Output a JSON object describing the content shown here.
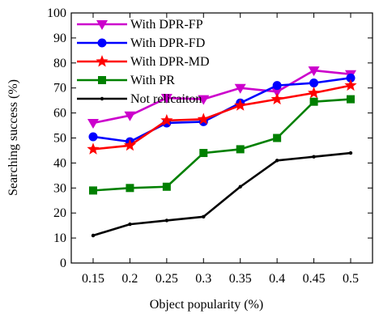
{
  "chart_data": {
    "type": "line",
    "xlabel": "Object popularity (%)",
    "ylabel": "Searching success (%)",
    "x": [
      0.15,
      0.2,
      0.25,
      0.3,
      0.35,
      0.4,
      0.45,
      0.5
    ],
    "x_tick_labels": [
      "0.15",
      "0.2",
      "0.25",
      "0.3",
      "0.35",
      "0.4",
      "0.45",
      "0.5"
    ],
    "y_ticks": [
      0,
      10,
      20,
      30,
      40,
      50,
      60,
      70,
      80,
      90,
      100
    ],
    "ylim": [
      0,
      100
    ],
    "grid": false,
    "legend_position": "top-left",
    "series": [
      {
        "name": "With DPR-FP",
        "color": "#cc00cc",
        "marker": "triangle-down",
        "values": [
          56,
          59,
          66,
          65.5,
          70,
          68.5,
          77,
          75.5
        ]
      },
      {
        "name": "With DPR-FD",
        "color": "#0000ff",
        "marker": "circle",
        "values": [
          50.5,
          48.5,
          56,
          56.5,
          64,
          71,
          72,
          74
        ]
      },
      {
        "name": "With DPR-MD",
        "color": "#ff0000",
        "marker": "star",
        "values": [
          45.5,
          47,
          57,
          57.5,
          63,
          65.5,
          68,
          71
        ]
      },
      {
        "name": "With PR",
        "color": "#008000",
        "marker": "square",
        "values": [
          29,
          30,
          30.5,
          44,
          45.5,
          50,
          64.5,
          65.5
        ]
      },
      {
        "name": "Not relicaiton",
        "color": "#000000",
        "marker": "dot",
        "values": [
          11,
          15.5,
          17,
          18.5,
          30.5,
          41,
          42.5,
          44
        ]
      }
    ]
  }
}
